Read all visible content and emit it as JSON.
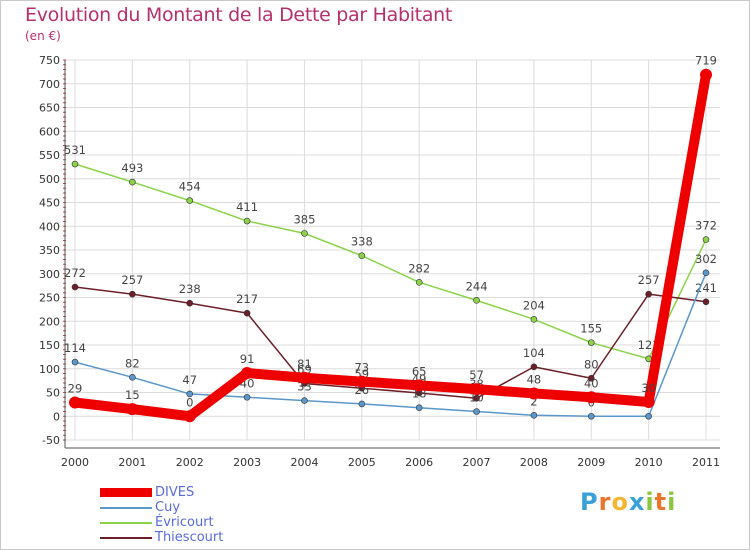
{
  "title": "Evolution du Montant de la Dette par Habitant",
  "subtitle": "(en €)",
  "logo": {
    "text": "Proxiti",
    "letters": [
      "P",
      "r",
      "o",
      "x",
      "i",
      "t",
      "i"
    ],
    "colors": [
      "#3aa0d8",
      "#e8762d",
      "#f2b632",
      "#3aa0d8",
      "#8cc63f",
      "#e8762d",
      "#8cc63f"
    ]
  },
  "chart_data": {
    "type": "line",
    "x": [
      "2000",
      "2001",
      "2002",
      "2003",
      "2004",
      "2005",
      "2006",
      "2007",
      "2008",
      "2009",
      "2010",
      "2011"
    ],
    "ylim": [
      -50,
      750
    ],
    "yticks": [
      "-50",
      "0",
      "50",
      "100",
      "150",
      "200",
      "250",
      "300",
      "350",
      "400",
      "450",
      "500",
      "550",
      "600",
      "650",
      "700",
      "750"
    ],
    "grid": true,
    "legend_position": "bottom-left",
    "series": [
      {
        "name": "Évricourt",
        "color": "#8cd34a",
        "width": 1.5,
        "values": [
          531,
          493,
          454,
          411,
          385,
          338,
          282,
          244,
          204,
          155,
          121,
          372
        ],
        "labels": [
          "531",
          "493",
          "454",
          "411",
          "385",
          "338",
          "282",
          "244",
          "204",
          "155",
          "121",
          "372"
        ]
      },
      {
        "name": "Thiescourt",
        "color": "#6b1f28",
        "width": 1.5,
        "values": [
          272,
          257,
          238,
          217,
          69,
          59,
          49,
          38,
          104,
          80,
          257,
          241
        ],
        "labels": [
          "272",
          "257",
          "238",
          "217",
          "69",
          "59",
          "49",
          "38",
          "104",
          "80",
          "257",
          "241"
        ]
      },
      {
        "name": "Cuy",
        "color": "#5b97c9",
        "width": 1.5,
        "values": [
          114,
          82,
          47,
          40,
          33,
          26,
          18,
          10,
          2,
          0,
          0,
          302
        ],
        "labels": [
          "114",
          "82",
          "47",
          "40",
          "33",
          "26",
          "18",
          "10",
          "2",
          "0",
          "",
          "302"
        ]
      },
      {
        "name": "DIVES",
        "color": "#ee0000",
        "width": 10,
        "values": [
          29,
          15,
          0,
          91,
          81,
          73,
          65,
          57,
          48,
          40,
          30,
          719
        ],
        "labels": [
          "29",
          "15",
          "0",
          "91",
          "81",
          "73",
          "65",
          "57",
          "48",
          "40",
          "30",
          "719"
        ]
      }
    ],
    "legend": [
      {
        "name": "DIVES",
        "color": "#ee0000",
        "thick": true
      },
      {
        "name": "Cuy",
        "color": "#5b97c9",
        "thick": false
      },
      {
        "name": "Évricourt",
        "color": "#8cd34a",
        "thick": false
      },
      {
        "name": "Thiescourt",
        "color": "#6b1f28",
        "thick": false
      }
    ]
  }
}
